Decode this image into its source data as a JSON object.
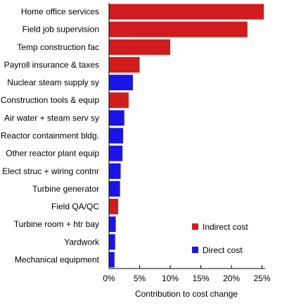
{
  "chart_data": {
    "type": "bar",
    "orientation": "horizontal",
    "title": "",
    "xlabel": "Contribution to cost change",
    "ylabel": "",
    "xlim": [
      0,
      25.5
    ],
    "x_ticks": [
      0,
      5,
      10,
      15,
      20,
      25
    ],
    "x_tick_labels": [
      "0%",
      "5%",
      "10%",
      "15%",
      "20%",
      "25%"
    ],
    "grid": false,
    "legend_position": "bottom-right",
    "series_colors": {
      "Indirect cost": "#d01c1c",
      "Direct cost": "#1a14e8"
    },
    "legend": [
      {
        "name": "Indirect cost",
        "color": "#d01c1c"
      },
      {
        "name": "Direct cost",
        "color": "#1a14e8"
      }
    ],
    "categories": [
      "Home office services",
      "Field job supervision",
      "Temp construction fac",
      "Payroll insurance & taxes",
      "Nuclear steam supply sy",
      "Construction tools & equip",
      "Air water + steam serv sy",
      "Reactor containment bldg.",
      "Other reactor plant equip",
      "Elect struc + wiring contnr",
      "Turbine generator",
      "Field QA/QC",
      "Turbine room + htr bay",
      "Yardwork",
      "Mechanical equipment"
    ],
    "values": [
      25.3,
      22.6,
      10.0,
      5.0,
      3.9,
      3.2,
      2.5,
      2.3,
      2.2,
      1.9,
      1.8,
      1.5,
      1.1,
      1.0,
      0.9
    ],
    "series_type": [
      "Indirect cost",
      "Indirect cost",
      "Indirect cost",
      "Indirect cost",
      "Direct cost",
      "Indirect cost",
      "Direct cost",
      "Direct cost",
      "Direct cost",
      "Direct cost",
      "Direct cost",
      "Indirect cost",
      "Direct cost",
      "Direct cost",
      "Direct cost"
    ]
  }
}
